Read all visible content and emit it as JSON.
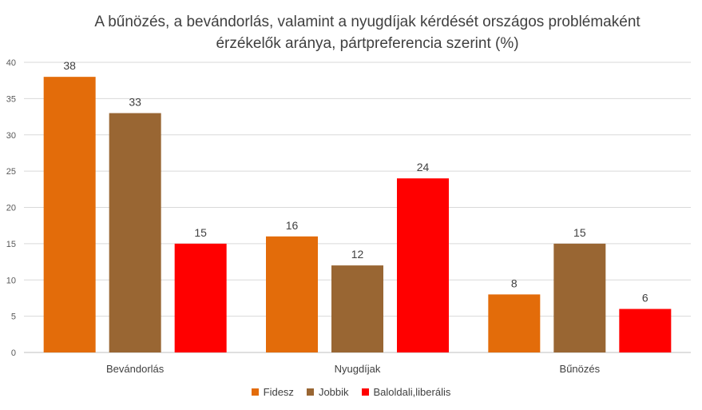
{
  "chart_data": {
    "type": "bar",
    "title": "A bűnözés, a bevándorlás, valamint a nyugdíjak kérdését országos problémaként érzékelők aránya, pártpreferencia szerint (%)",
    "title_lines": [
      "A bűnözés, a bevándorlás, valamint a nyugdíjak kérdését országos problémaként",
      "érzékelők aránya, pártpreferencia szerint (%)"
    ],
    "xlabel": "",
    "ylabel": "",
    "categories": [
      "Bevándorlás",
      "Nyugdíjak",
      "Bűnözés"
    ],
    "series": [
      {
        "name": "Fidesz",
        "color": "#E36C0A",
        "values": [
          38,
          16,
          8
        ],
        "value_labels": [
          "38",
          "16",
          "8"
        ]
      },
      {
        "name": "Jobbik",
        "color": "#996633",
        "values": [
          33,
          12,
          15
        ],
        "value_labels": [
          "33",
          "12",
          "15"
        ]
      },
      {
        "name": "Baloldali,liberális",
        "color": "#FF0000",
        "values": [
          15,
          24,
          6
        ],
        "value_labels": [
          "15",
          "24",
          "6"
        ]
      }
    ],
    "ylim": [
      0,
      40
    ],
    "yticks": [
      0,
      5,
      10,
      15,
      20,
      25,
      30,
      35,
      40
    ],
    "ytick_labels": [
      "0",
      "5",
      "10",
      "15",
      "20",
      "25",
      "30",
      "35",
      "40"
    ],
    "grid": true,
    "legend_position": "bottom"
  }
}
